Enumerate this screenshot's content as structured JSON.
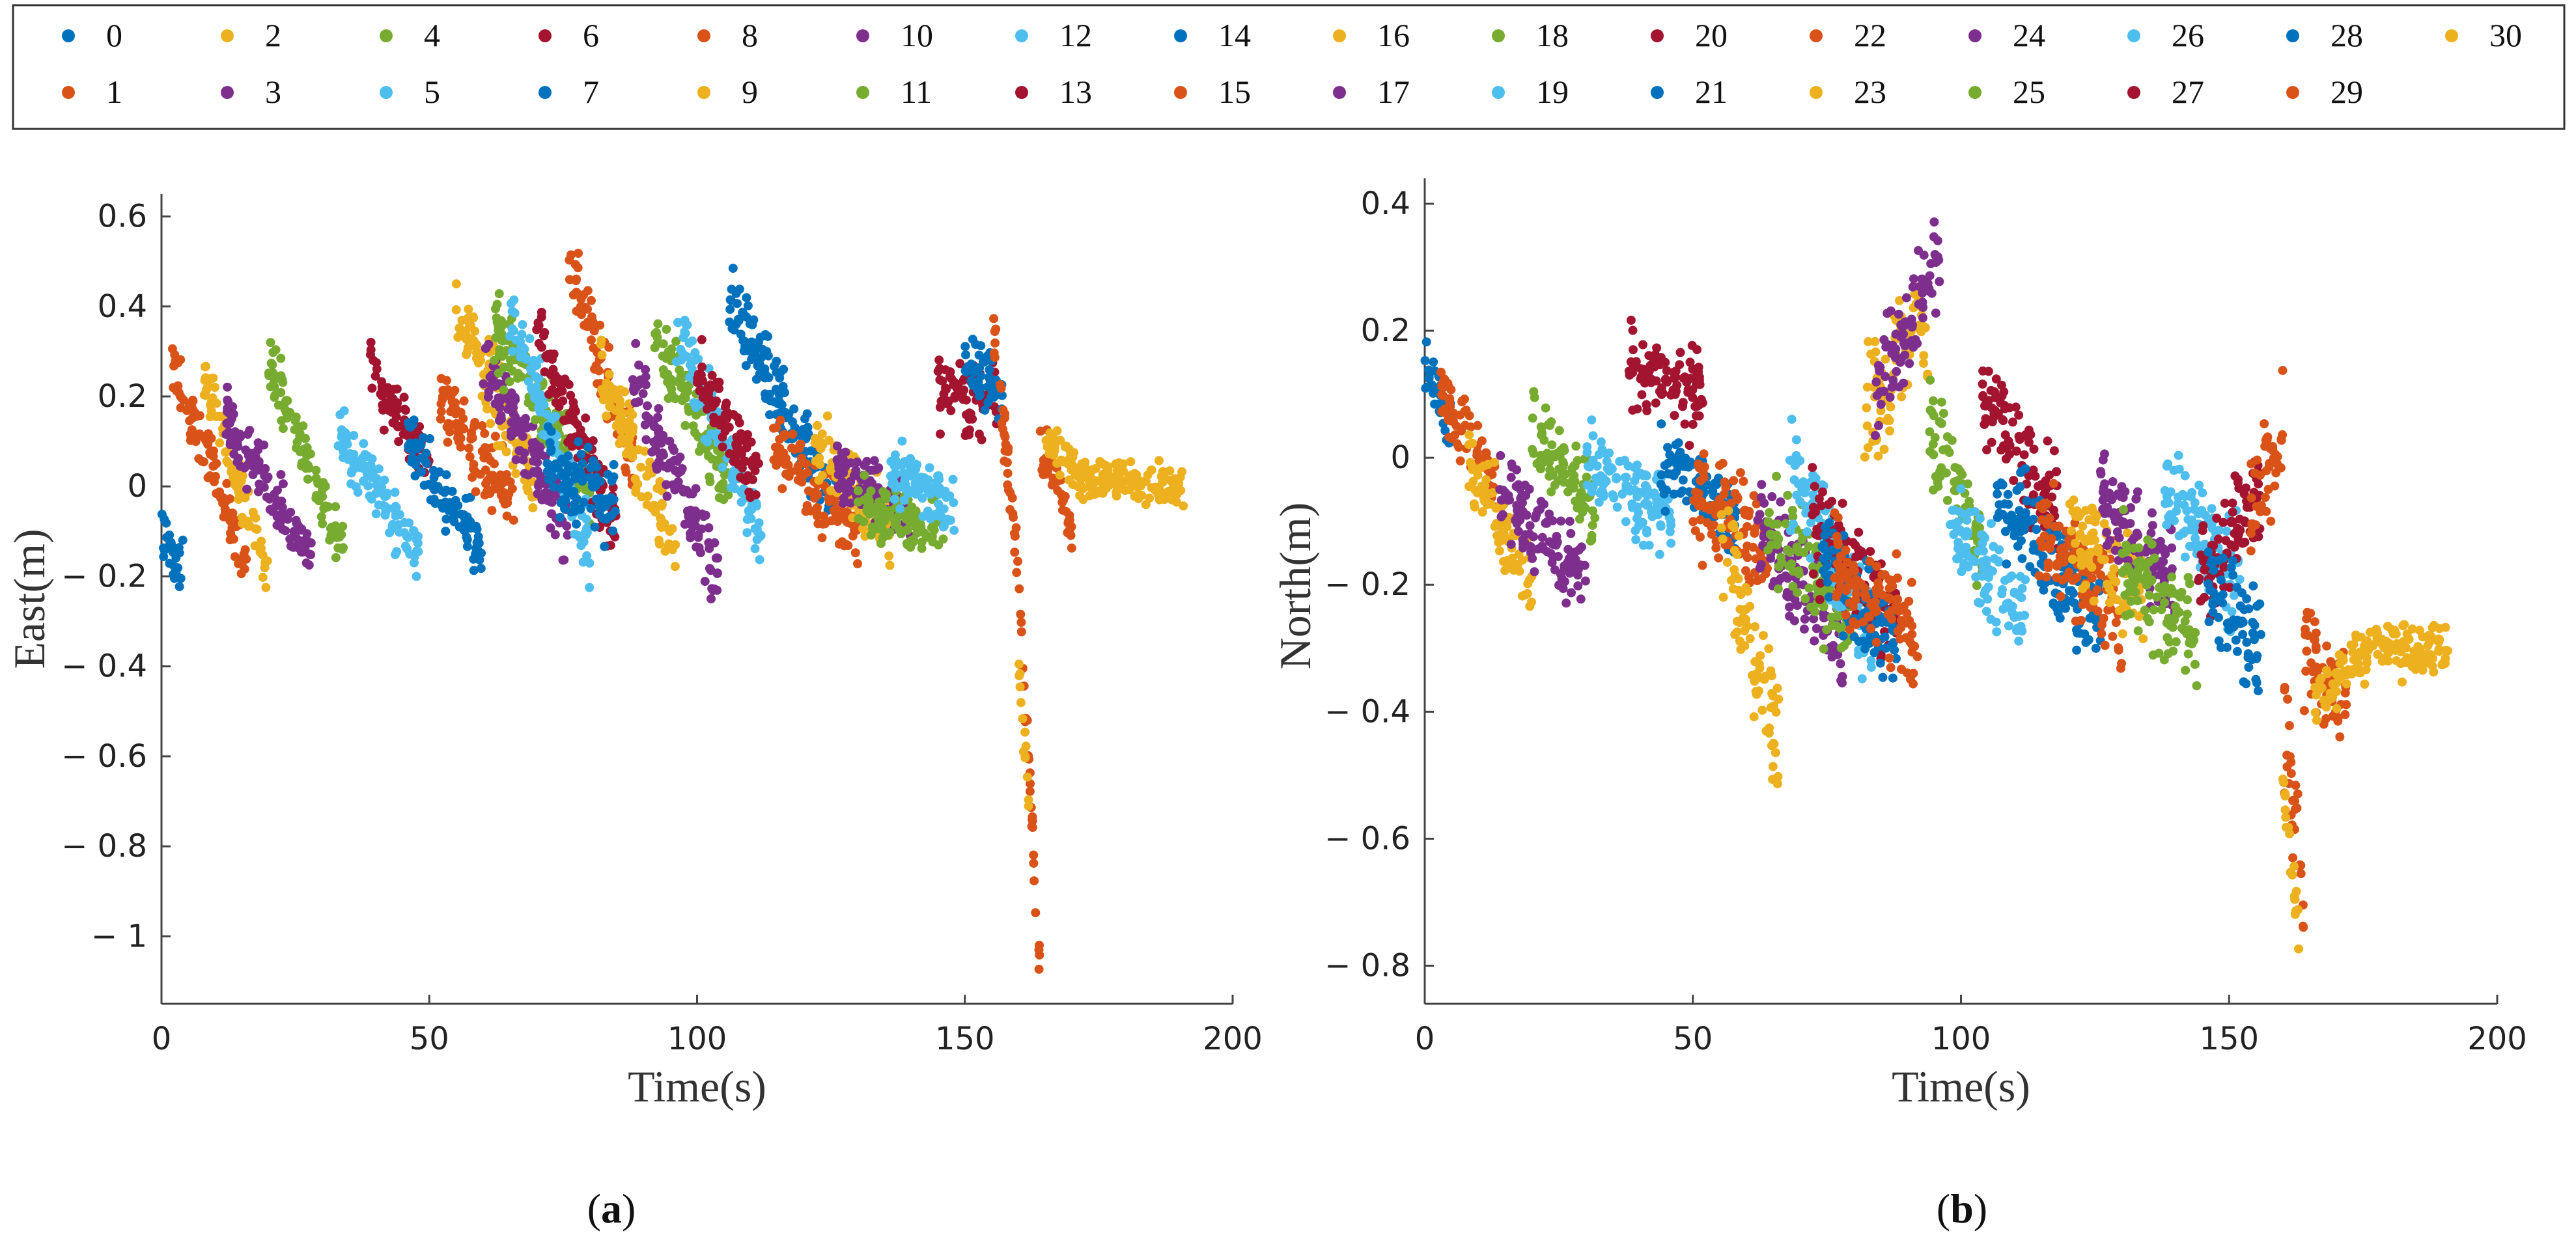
{
  "figure": {
    "legend_title": "",
    "panel_captions": [
      {
        "paren_open": "(",
        "letter": "a",
        "paren_close": ")"
      },
      {
        "paren_open": "(",
        "letter": "b",
        "paren_close": ")"
      }
    ]
  },
  "colors": {
    "palette": [
      "#0072BD",
      "#D95319",
      "#EDB120",
      "#7E2F8E",
      "#77AC30",
      "#4DBEEE",
      "#A2142F"
    ],
    "axis": "#444444"
  },
  "chart_data": [
    {
      "type": "scatter",
      "title": "",
      "xlabel": "Time(s)",
      "ylabel": "East(m)",
      "xlim": [
        0,
        200
      ],
      "ylim": [
        -1.15,
        0.65
      ],
      "xticks": [
        0,
        50,
        100,
        150,
        200
      ],
      "xtick_labels": [
        "0",
        "50",
        "100",
        "150",
        "200"
      ],
      "yticks": [
        0.6,
        0.4,
        0.2,
        0,
        -0.2,
        -0.4,
        -0.6,
        -0.8,
        -1
      ],
      "ytick_labels": [
        "0.6",
        "0.4",
        "0.2",
        "0",
        "− 0.2",
        "− 0.4",
        "− 0.6",
        "− 0.8",
        "− 1"
      ],
      "legend": [
        "0",
        "1",
        "2",
        "3",
        "4",
        "5",
        "6",
        "7",
        "8",
        "9",
        "10",
        "11",
        "12",
        "13",
        "14",
        "15",
        "16",
        "17",
        "18",
        "19",
        "20",
        "21",
        "22",
        "23",
        "24",
        "25",
        "26",
        "27",
        "28",
        "29",
        "30"
      ],
      "series": [
        {
          "name": "0",
          "segments": [
            [
              0,
              -0.1,
              4,
              -0.2
            ]
          ],
          "spread": 0.04
        },
        {
          "name": "1",
          "segments": [
            [
              2,
              0.28,
              16,
              -0.18
            ]
          ],
          "spread": 0.04
        },
        {
          "name": "2",
          "segments": [
            [
              8,
              0.25,
              20,
              -0.2
            ]
          ],
          "spread": 0.04
        },
        {
          "name": "3",
          "segments": [
            [
              12,
              0.15,
              28,
              -0.15
            ]
          ],
          "spread": 0.04
        },
        {
          "name": "4",
          "segments": [
            [
              20,
              0.28,
              34,
              -0.15
            ]
          ],
          "spread": 0.04
        },
        {
          "name": "5",
          "segments": [
            [
              33,
              0.12,
              48,
              -0.15
            ]
          ],
          "spread": 0.04
        },
        {
          "name": "6",
          "segments": [
            [
              39,
              0.25,
              50,
              0.05
            ]
          ],
          "spread": 0.04
        },
        {
          "name": "7",
          "segments": [
            [
              46,
              0.1,
              60,
              -0.15
            ]
          ],
          "spread": 0.04
        },
        {
          "name": "8",
          "segments": [
            [
              52,
              0.2,
              66,
              -0.05
            ]
          ],
          "spread": 0.05
        },
        {
          "name": "9",
          "segments": [
            [
              55,
              0.4,
              70,
              0.0
            ]
          ],
          "spread": 0.05
        },
        {
          "name": "10",
          "segments": [
            [
              60,
              0.3,
              76,
              -0.1
            ]
          ],
          "spread": 0.05
        },
        {
          "name": "11",
          "segments": [
            [
              62,
              0.35,
              80,
              0.0
            ]
          ],
          "spread": 0.05
        },
        {
          "name": "12",
          "segments": [
            [
              65,
              0.4,
              80,
              -0.15
            ]
          ],
          "spread": 0.05
        },
        {
          "name": "13",
          "segments": [
            [
              70,
              0.35,
              85,
              -0.1
            ]
          ],
          "spread": 0.05
        },
        {
          "name": "14",
          "segments": [
            [
              72,
              0.05,
              85,
              -0.05
            ]
          ],
          "spread": 0.05
        },
        {
          "name": "15",
          "segments": [
            [
              76,
              0.52,
              88,
              0.05
            ]
          ],
          "spread": 0.05
        },
        {
          "name": "16",
          "segments": [
            [
              82,
              0.25,
              96,
              -0.15
            ]
          ],
          "spread": 0.05
        },
        {
          "name": "17",
          "segments": [
            [
              88,
              0.25,
              104,
              -0.2
            ]
          ],
          "spread": 0.05
        },
        {
          "name": "18",
          "segments": [
            [
              92,
              0.35,
              106,
              0.0
            ]
          ],
          "spread": 0.05
        },
        {
          "name": "19",
          "segments": [
            [
              96,
              0.35,
              112,
              -0.1
            ]
          ],
          "spread": 0.05
        },
        {
          "name": "20",
          "segments": [
            [
              100,
              0.25,
              112,
              0.0
            ]
          ],
          "spread": 0.05
        },
        {
          "name": "21",
          "segments": [
            [
              106,
              0.42,
              126,
              -0.05
            ]
          ],
          "spread": 0.05
        },
        {
          "name": "22",
          "segments": [
            [
              114,
              0.1,
              130,
              -0.1
            ]
          ],
          "spread": 0.05
        },
        {
          "name": "23",
          "segments": [
            [
              122,
              0.1,
              136,
              -0.1
            ]
          ],
          "spread": 0.05
        },
        {
          "name": "24",
          "segments": [
            [
              126,
              0.05,
              140,
              -0.05
            ]
          ],
          "spread": 0.04
        },
        {
          "name": "25",
          "segments": [
            [
              130,
              -0.05,
              146,
              -0.1
            ]
          ],
          "spread": 0.04
        },
        {
          "name": "26",
          "segments": [
            [
              136,
              0.05,
              148,
              -0.05
            ]
          ],
          "spread": 0.04
        },
        {
          "name": "27",
          "segments": [
            [
              145,
              0.2,
              156,
              0.2
            ]
          ],
          "spread": 0.05
        },
        {
          "name": "28",
          "segments": [
            [
              150,
              0.3,
              157,
              0.2
            ]
          ],
          "spread": 0.05
        },
        {
          "name": "29",
          "segments": [
            [
              155,
              0.4,
              160,
              -0.2
            ],
            [
              160,
              -0.2,
              164,
              -1.08
            ],
            [
              164,
              0.1,
              170,
              -0.1
            ]
          ],
          "spread": 0.04
        },
        {
          "name": "30",
          "segments": [
            [
              160,
              -0.4,
              162,
              -0.7
            ],
            [
              165,
              0.1,
              172,
              0.02
            ],
            [
              172,
              0.02,
              191,
              0.0
            ]
          ],
          "spread": 0.025
        }
      ]
    },
    {
      "type": "scatter",
      "title": "",
      "xlabel": "Time(s)",
      "ylabel": "North(m)",
      "xlim": [
        0,
        200
      ],
      "ylim": [
        -0.86,
        0.44
      ],
      "xticks": [
        0,
        50,
        100,
        150,
        200
      ],
      "xtick_labels": [
        "0",
        "50",
        "100",
        "150",
        "200"
      ],
      "yticks": [
        0.4,
        0.2,
        0,
        -0.2,
        -0.4,
        -0.6,
        -0.8
      ],
      "ytick_labels": [
        "0.4",
        "0.2",
        "0",
        "− 0.2",
        "− 0.4",
        "− 0.6",
        "− 0.8"
      ],
      "series": [
        {
          "name": "0",
          "segments": [
            [
              0,
              0.15,
              5,
              0.05
            ]
          ],
          "spread": 0.03
        },
        {
          "name": "1",
          "segments": [
            [
              3,
              0.1,
              14,
              -0.05
            ]
          ],
          "spread": 0.03
        },
        {
          "name": "2",
          "segments": [
            [
              8,
              0.0,
              20,
              -0.2
            ]
          ],
          "spread": 0.04
        },
        {
          "name": "3",
          "segments": [
            [
              14,
              -0.05,
              30,
              -0.2
            ]
          ],
          "spread": 0.04
        },
        {
          "name": "4",
          "segments": [
            [
              20,
              0.05,
              32,
              -0.1
            ]
          ],
          "spread": 0.04
        },
        {
          "name": "5",
          "segments": [
            [
              30,
              0.0,
              46,
              -0.1
            ]
          ],
          "spread": 0.04
        },
        {
          "name": "6",
          "segments": [
            [
              38,
              0.15,
              52,
              0.1
            ]
          ],
          "spread": 0.04
        },
        {
          "name": "7",
          "segments": [
            [
              44,
              0.0,
              58,
              -0.1
            ]
          ],
          "spread": 0.04
        },
        {
          "name": "8",
          "segments": [
            [
              50,
              -0.05,
              64,
              -0.15
            ]
          ],
          "spread": 0.05
        },
        {
          "name": "9",
          "segments": [
            [
              55,
              -0.1,
              66,
              -0.45
            ]
          ],
          "spread": 0.05
        },
        {
          "name": "10",
          "segments": [
            [
              62,
              -0.1,
              78,
              -0.3
            ]
          ],
          "spread": 0.05
        },
        {
          "name": "11",
          "segments": [
            [
              64,
              -0.1,
              80,
              -0.25
            ]
          ],
          "spread": 0.05
        },
        {
          "name": "12",
          "segments": [
            [
              68,
              0.0,
              84,
              -0.3
            ]
          ],
          "spread": 0.05
        },
        {
          "name": "13",
          "segments": [
            [
              72,
              -0.1,
              88,
              -0.25
            ]
          ],
          "spread": 0.05
        },
        {
          "name": "14",
          "segments": [
            [
              74,
              -0.15,
              88,
              -0.3
            ]
          ],
          "spread": 0.05
        },
        {
          "name": "15",
          "segments": [
            [
              76,
              -0.15,
              92,
              -0.3
            ]
          ],
          "spread": 0.05
        },
        {
          "name": "16",
          "segments": [
            [
              82,
              0.05,
              94,
              0.25
            ]
          ],
          "spread": 0.06
        },
        {
          "name": "17",
          "segments": [
            [
              84,
              0.1,
              96,
              0.3
            ]
          ],
          "spread": 0.06
        },
        {
          "name": "18",
          "segments": [
            [
              94,
              0.05,
              104,
              -0.15
            ]
          ],
          "spread": 0.05
        },
        {
          "name": "19",
          "segments": [
            [
              98,
              -0.1,
              112,
              -0.25
            ]
          ],
          "spread": 0.05
        },
        {
          "name": "20",
          "segments": [
            [
              104,
              0.1,
              118,
              -0.1
            ]
          ],
          "spread": 0.05
        },
        {
          "name": "21",
          "segments": [
            [
              106,
              -0.05,
              126,
              -0.25
            ]
          ],
          "spread": 0.05
        },
        {
          "name": "22",
          "segments": [
            [
              114,
              -0.1,
              130,
              -0.25
            ]
          ],
          "spread": 0.05
        },
        {
          "name": "23",
          "segments": [
            [
              120,
              -0.1,
              134,
              -0.2
            ]
          ],
          "spread": 0.05
        },
        {
          "name": "24",
          "segments": [
            [
              126,
              -0.05,
              140,
              -0.2
            ]
          ],
          "spread": 0.05
        },
        {
          "name": "25",
          "segments": [
            [
              130,
              -0.15,
              144,
              -0.3
            ]
          ],
          "spread": 0.05
        },
        {
          "name": "26",
          "segments": [
            [
              138,
              -0.05,
              152,
              -0.2
            ]
          ],
          "spread": 0.05
        },
        {
          "name": "27",
          "segments": [
            [
              144,
              -0.2,
              156,
              -0.05
            ]
          ],
          "spread": 0.05
        },
        {
          "name": "28",
          "segments": [
            [
              146,
              -0.2,
              156,
              -0.3
            ]
          ],
          "spread": 0.05
        },
        {
          "name": "29",
          "segments": [
            [
              154,
              -0.1,
              160,
              0.05
            ],
            [
              160,
              -0.4,
              164,
              -0.7
            ],
            [
              164,
              -0.3,
              172,
              -0.4
            ]
          ],
          "spread": 0.05
        },
        {
          "name": "30",
          "segments": [
            [
              160,
              -0.5,
              163,
              -0.75
            ],
            [
              166,
              -0.38,
              176,
              -0.3
            ],
            [
              176,
              -0.3,
              191,
              -0.3
            ]
          ],
          "spread": 0.025
        }
      ]
    }
  ]
}
